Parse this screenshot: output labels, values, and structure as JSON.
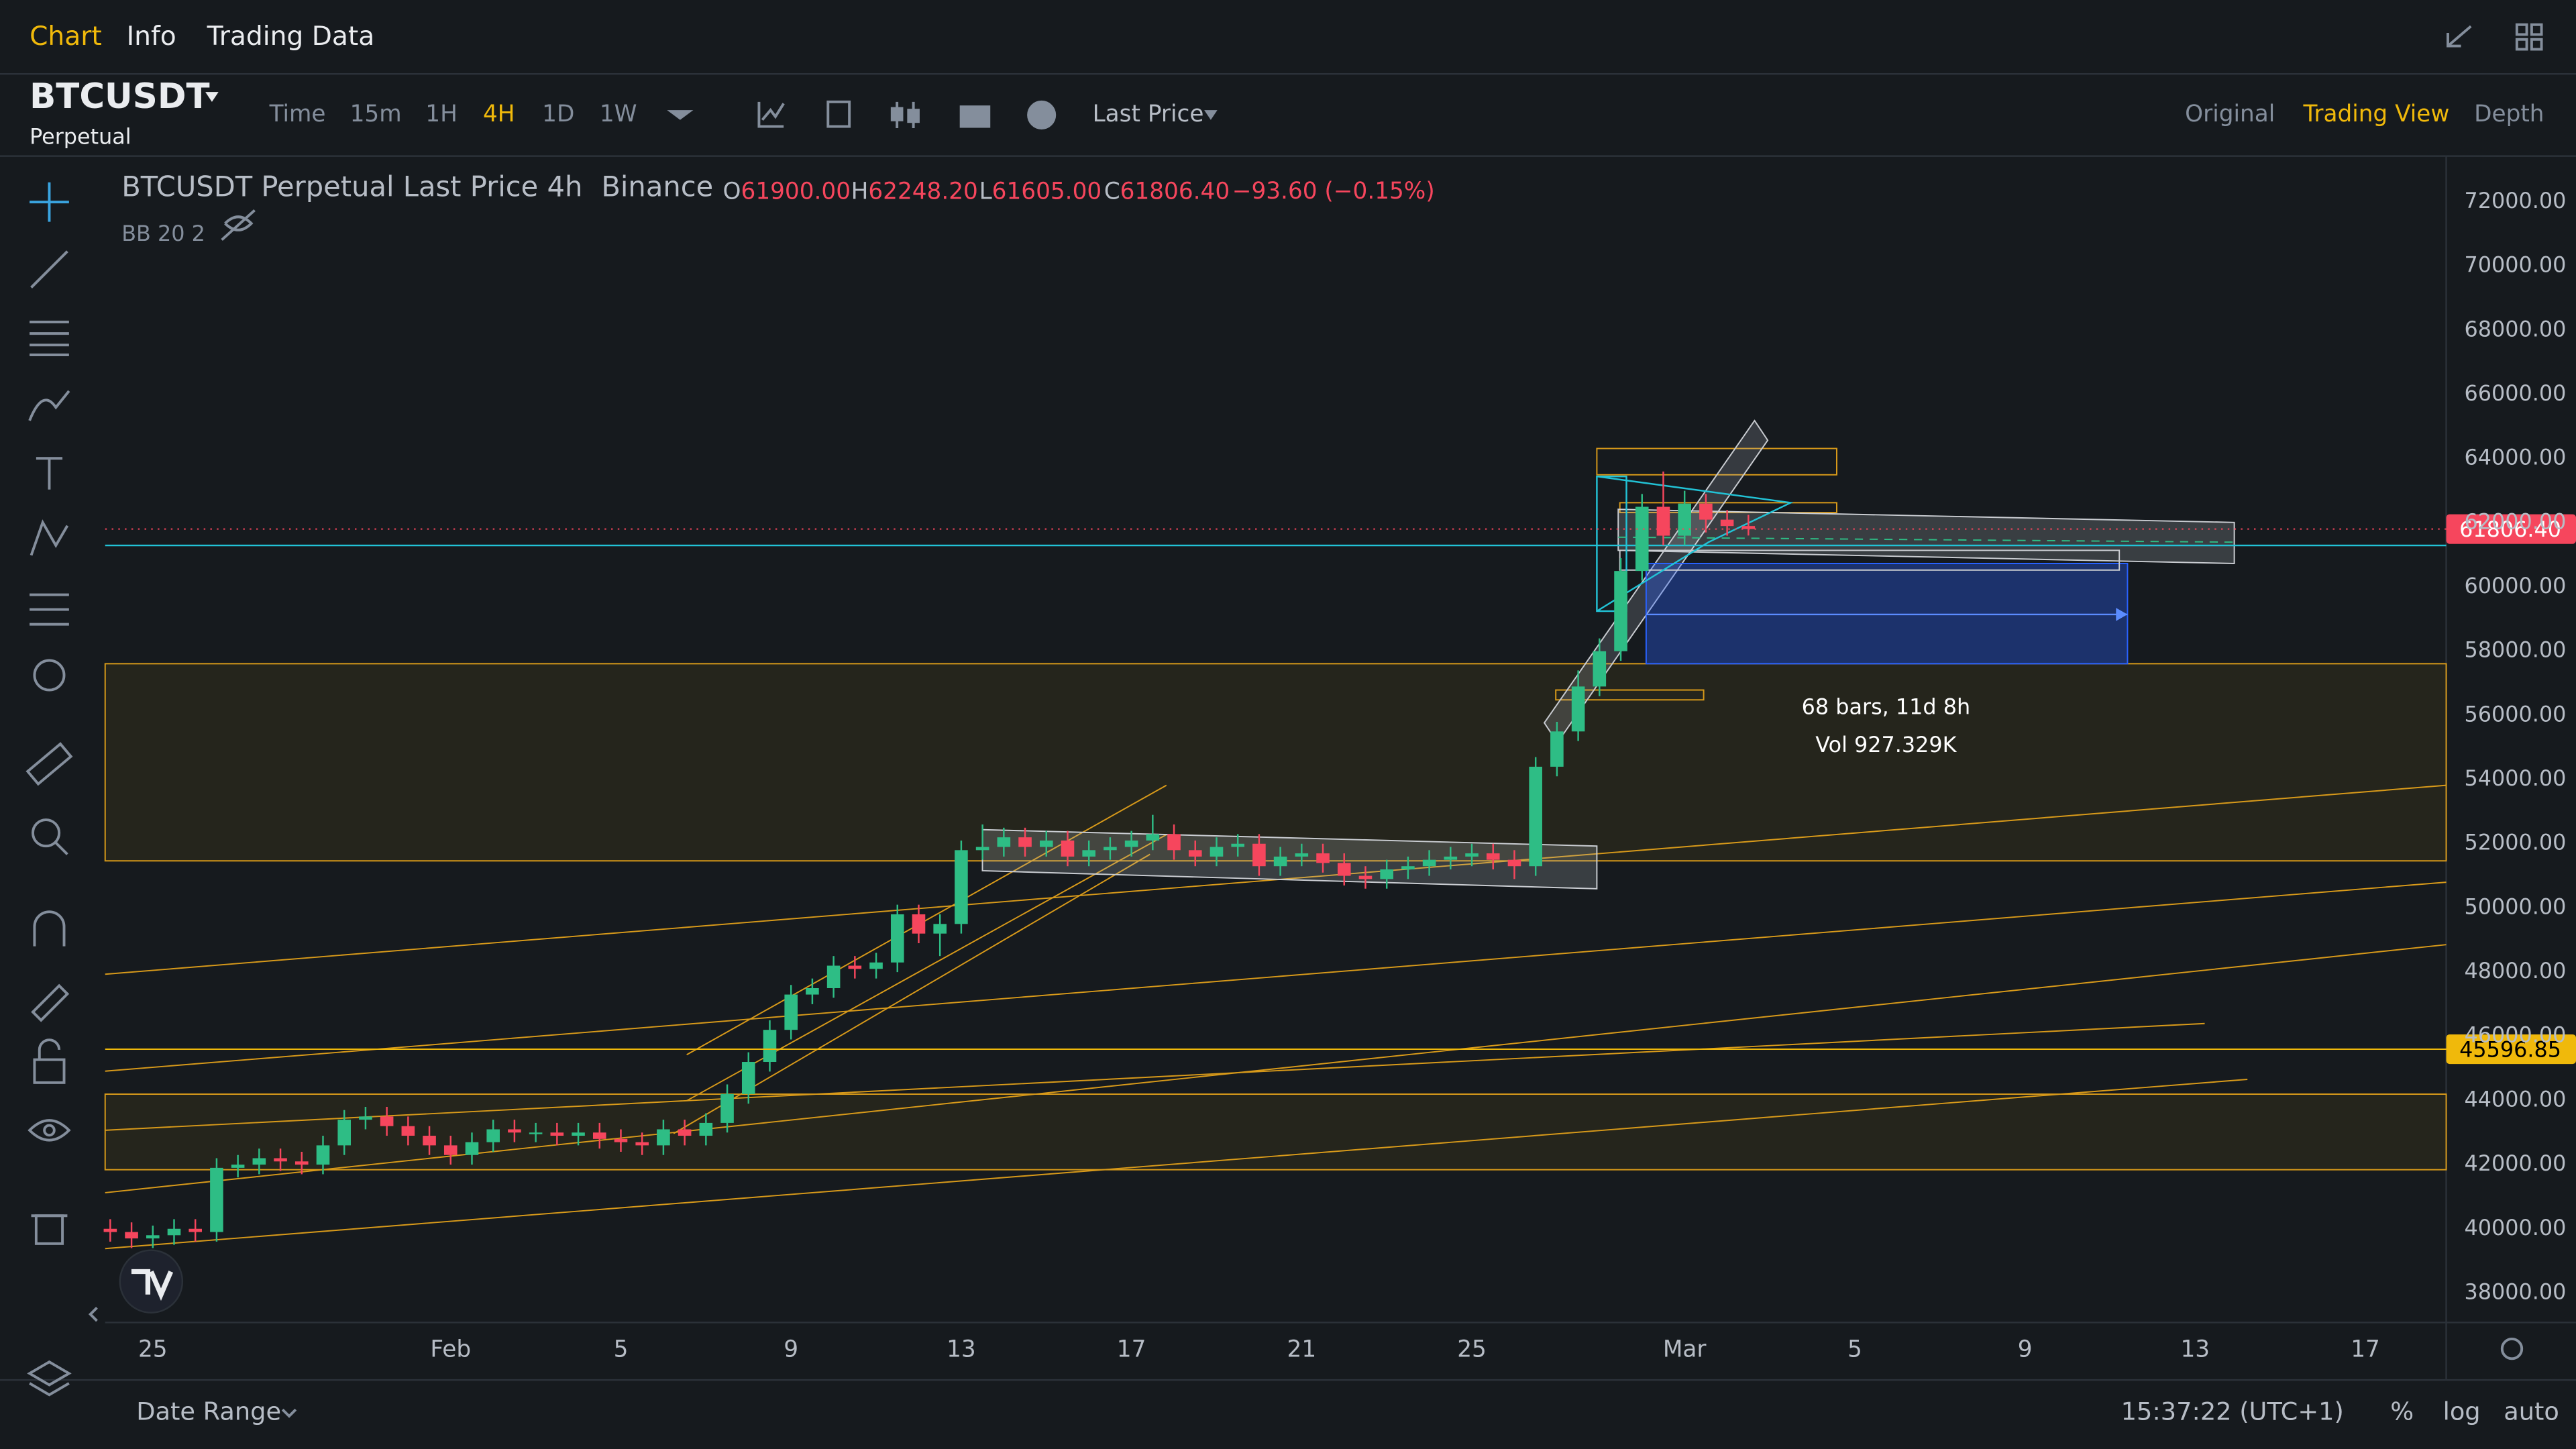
{
  "nav": {
    "tabs": [
      "Chart",
      "Info",
      "Trading Data"
    ],
    "active_tab": 0
  },
  "symbol": {
    "name": "BTCUSDT",
    "contract": "Perpetual"
  },
  "toolbar": {
    "intervals": [
      "Time",
      "15m",
      "1H",
      "4H",
      "1D",
      "1W"
    ],
    "active_interval": 3,
    "price_type": "Last Price",
    "views": [
      "Original",
      "Trading View",
      "Depth"
    ],
    "active_view": 1
  },
  "legend": {
    "title": "BTCUSDT Perpetual Last Price",
    "interval": "4h",
    "exchange": "Binance",
    "ohlc": [
      {
        "label": "O",
        "value": "61900.00"
      },
      {
        "label": "H",
        "value": "62248.20"
      },
      {
        "label": "L",
        "value": "61605.00"
      },
      {
        "label": "C",
        "value": "61806.40"
      }
    ],
    "change": "−93.60 (−0.15%)",
    "indicator": "BB 20 2"
  },
  "chart_data": {
    "type": "candlestick",
    "x": [
      24,
      24.5,
      25,
      25.5,
      26,
      26.5,
      27,
      27.5,
      28,
      28.5,
      29,
      29.5,
      30,
      30.5,
      31,
      31.5,
      32,
      32.5,
      33,
      33.5,
      34,
      34.5,
      35,
      35.5,
      36,
      36.5,
      37,
      37.5,
      38,
      38.5,
      39,
      39.5,
      40,
      40.5,
      41,
      41.5,
      42,
      42.5,
      43,
      43.5,
      44,
      44.5,
      45,
      45.5,
      46,
      46.5,
      47,
      47.5,
      48,
      48.5,
      49,
      49.5,
      50,
      50.5,
      51,
      51.5,
      52,
      52.5,
      53,
      53.5,
      54,
      54.5,
      55,
      55.5,
      56,
      56.5,
      57,
      57.5,
      58,
      58.5,
      59,
      59.5,
      60,
      60.5,
      61,
      61.5,
      62,
      62.5
    ],
    "open": [
      40000,
      39900,
      39700,
      39800,
      40000,
      39900,
      41900,
      42000,
      42200,
      42100,
      42000,
      42600,
      43400,
      43500,
      43200,
      42900,
      42600,
      42300,
      42700,
      43100,
      43000,
      43000,
      42900,
      43000,
      42800,
      42700,
      42600,
      43100,
      42900,
      43300,
      44200,
      45200,
      46200,
      47300,
      47500,
      48200,
      48100,
      48300,
      49800,
      49200,
      49500,
      51800,
      51900,
      52200,
      51900,
      52100,
      51600,
      51800,
      51900,
      52100,
      52300,
      51800,
      51600,
      51900,
      52000,
      51300,
      51600,
      51700,
      51400,
      51000,
      50900,
      51200,
      51300,
      51500,
      51600,
      51700,
      51500,
      51300,
      54400,
      55500,
      56900,
      58000,
      60500,
      62500,
      61600,
      62600,
      62100,
      61900
    ],
    "high": [
      40300,
      40200,
      40100,
      40300,
      40300,
      42200,
      42300,
      42500,
      42500,
      42400,
      42900,
      43700,
      43800,
      43800,
      43500,
      43200,
      42900,
      43000,
      43400,
      43400,
      43300,
      43300,
      43300,
      43300,
      43100,
      43000,
      43400,
      43400,
      43600,
      44500,
      45500,
      46500,
      47600,
      47800,
      48500,
      48500,
      48600,
      50100,
      50100,
      49800,
      52100,
      52600,
      52500,
      52500,
      52400,
      52400,
      52100,
      52200,
      52400,
      52900,
      52600,
      52100,
      52200,
      52300,
      52300,
      51900,
      52000,
      52000,
      51700,
      51300,
      51500,
      51600,
      51800,
      51900,
      52000,
      52000,
      51800,
      54700,
      55800,
      57400,
      58400,
      60900,
      62900,
      63600,
      63000,
      62900,
      62400,
      62248.2
    ],
    "low": [
      39600,
      39400,
      39400,
      39500,
      39600,
      39600,
      41600,
      41700,
      41800,
      41700,
      41700,
      42300,
      43100,
      42900,
      42600,
      42300,
      42000,
      42000,
      42400,
      42700,
      42700,
      42600,
      42600,
      42500,
      42400,
      42300,
      42300,
      42600,
      42600,
      43000,
      43900,
      44900,
      45900,
      47000,
      47200,
      47800,
      47800,
      48000,
      48900,
      48500,
      49200,
      51500,
      51600,
      51600,
      51600,
      51300,
      51300,
      51500,
      51600,
      51800,
      51500,
      51300,
      51300,
      51600,
      51000,
      51000,
      51300,
      51100,
      50700,
      50600,
      50600,
      50900,
      51000,
      51200,
      51300,
      51200,
      50900,
      51000,
      54100,
      55200,
      56600,
      57700,
      60200,
      61300,
      61300,
      61700,
      61600,
      61605
    ],
    "close": [
      39900,
      39700,
      39800,
      40000,
      39900,
      41900,
      42000,
      42200,
      42100,
      42000,
      42600,
      43400,
      43500,
      43200,
      42900,
      42600,
      42300,
      42700,
      43100,
      43000,
      43000,
      42900,
      43000,
      42800,
      42700,
      42600,
      43100,
      42900,
      43300,
      44200,
      45200,
      46200,
      47300,
      47500,
      48200,
      48100,
      48300,
      49800,
      49200,
      49500,
      51800,
      51900,
      52200,
      51900,
      52100,
      51600,
      51800,
      51900,
      52100,
      52300,
      51800,
      51600,
      51900,
      52000,
      51300,
      51600,
      51700,
      51400,
      51000,
      50900,
      51200,
      51300,
      51500,
      51600,
      51700,
      51500,
      51300,
      54400,
      55500,
      56900,
      58000,
      60500,
      62500,
      61600,
      62600,
      62100,
      61900,
      61806.4
    ],
    "up_color": "#2ebd85",
    "down_color": "#f6465d",
    "xlim": [
      23.88,
      78.9
    ],
    "xticks": [
      25,
      {
        "value": 32,
        "label": "Feb"
      },
      {
        "value": 36,
        "label": "5"
      },
      {
        "value": 40,
        "label": "9"
      },
      {
        "value": 44,
        "label": "13"
      },
      {
        "value": 48,
        "label": "17"
      },
      {
        "value": 52,
        "label": "21"
      },
      {
        "value": 56,
        "label": "25"
      },
      {
        "value": 61,
        "label": "Mar"
      },
      {
        "value": 65,
        "label": "5"
      },
      {
        "value": 69,
        "label": "9"
      },
      {
        "value": 73,
        "label": "13"
      },
      {
        "value": 77,
        "label": "17"
      }
    ],
    "ylim": [
      37080,
      73430
    ],
    "yticks": [
      {
        "value": 72000,
        "label": "72000.00"
      },
      {
        "value": 70000,
        "label": "70000.00"
      },
      {
        "value": 68000,
        "label": "68000.00"
      },
      {
        "value": 66000,
        "label": "66000.00"
      },
      {
        "value": 64000,
        "label": "64000.00"
      },
      {
        "value": 62000,
        "label": "62000.00"
      },
      {
        "value": 60000,
        "label": "60000.00"
      },
      {
        "value": 58000,
        "label": "58000.00"
      },
      {
        "value": 56000,
        "label": "56000.00"
      },
      {
        "value": 54000,
        "label": "54000.00"
      },
      {
        "value": 52000,
        "label": "52000.00"
      },
      {
        "value": 50000,
        "label": "50000.00"
      },
      {
        "value": 48000,
        "label": "48000.00"
      },
      {
        "value": 46000,
        "label": "46000.00"
      },
      {
        "value": 44000,
        "label": "44000.00"
      },
      {
        "value": 42000,
        "label": "42000.00"
      },
      {
        "value": 40000,
        "label": "40000.00"
      },
      {
        "value": 38000,
        "label": "38000.00"
      }
    ],
    "price_lines": [
      {
        "value": 61806.4,
        "label": "61806.40",
        "color": "#f6465d"
      },
      {
        "value": 45596.85,
        "label": "45596.85",
        "color": "#f0b90b"
      }
    ],
    "measure": {
      "bars": "68 bars, 11d 8h",
      "volume": "Vol 927.329K"
    }
  },
  "footer": {
    "date_range": "Date Range",
    "clock": "15:37:22 (UTC+1)",
    "options": [
      "%",
      "log",
      "auto"
    ]
  }
}
